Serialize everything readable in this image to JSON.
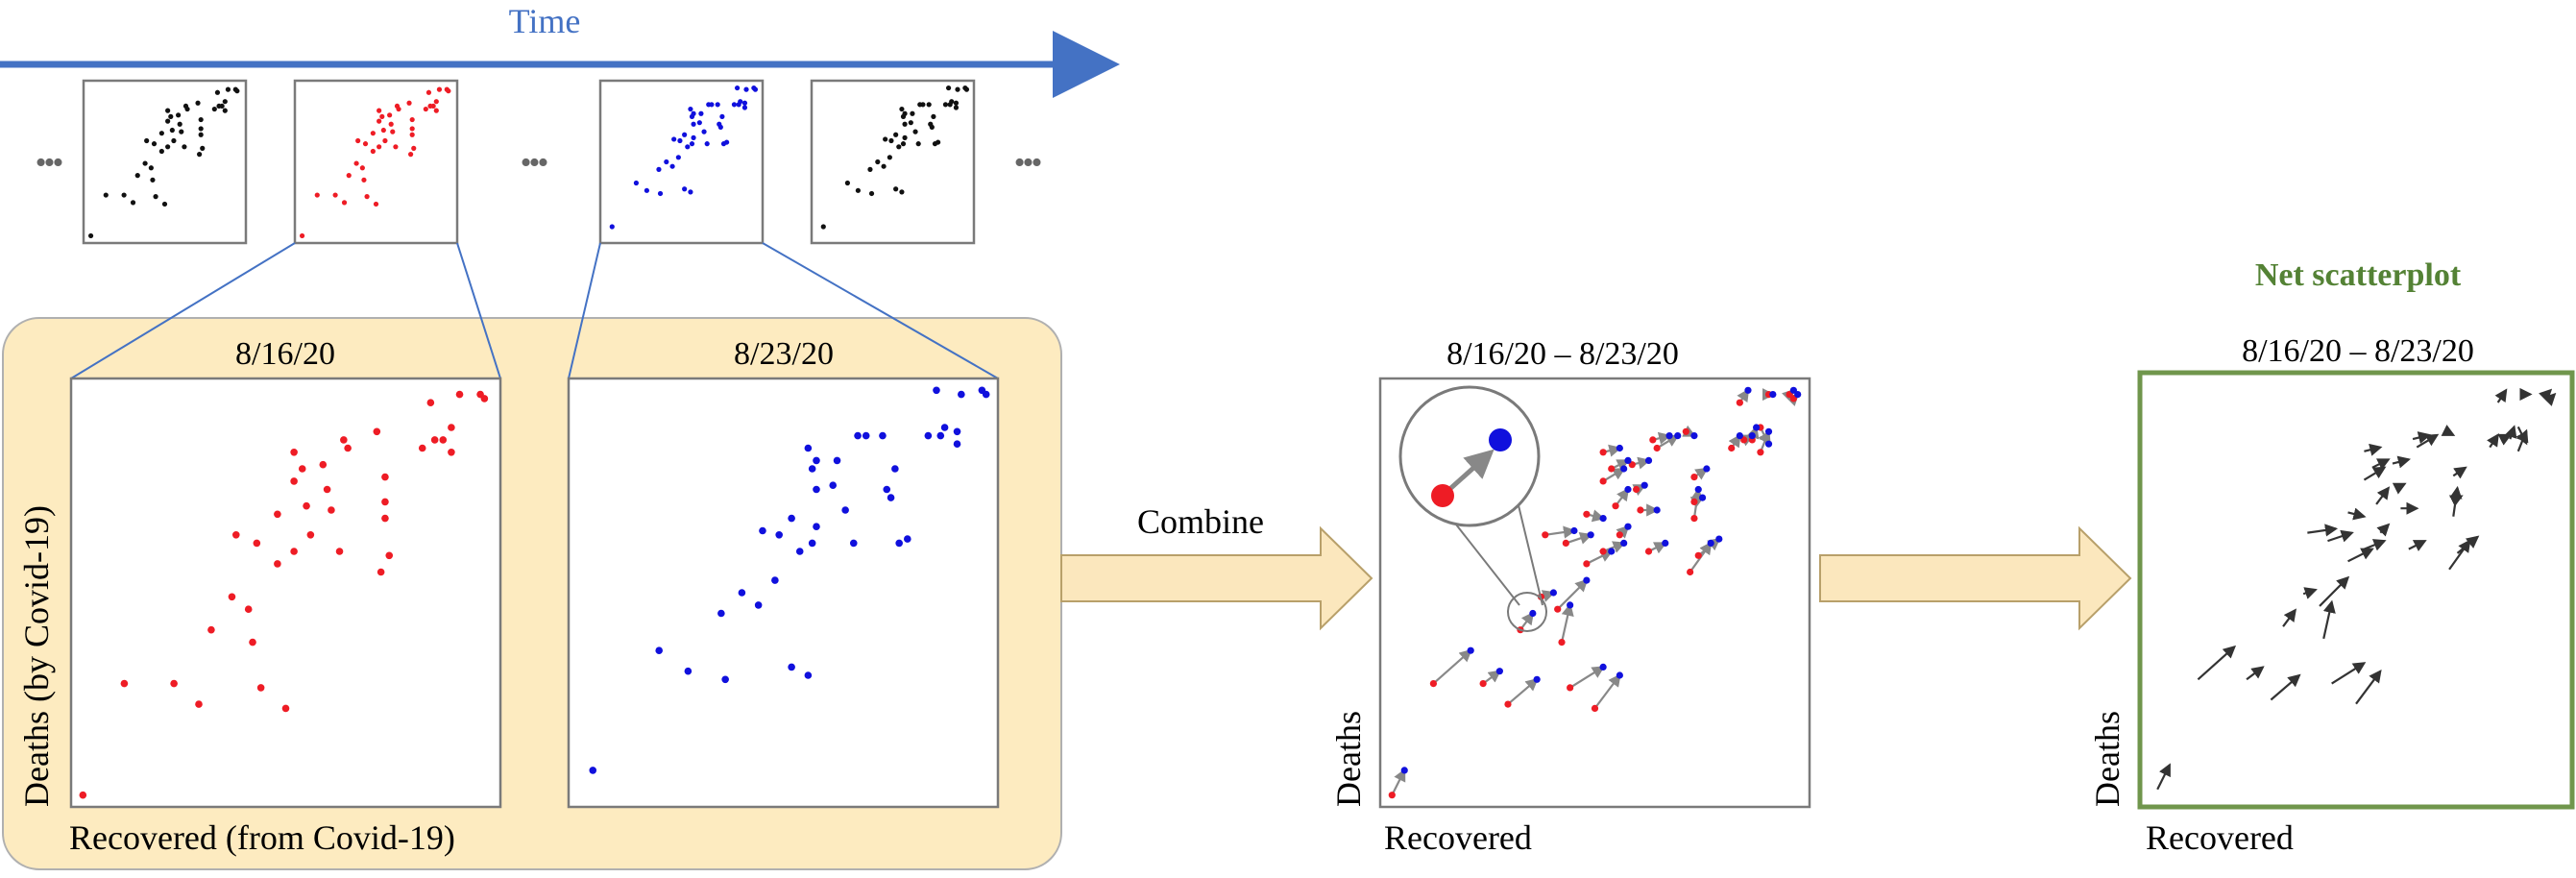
{
  "timeline": {
    "label": "Time",
    "color": "#4472c4"
  },
  "colors": {
    "week1": "#ee1c25",
    "week2": "#1010dd",
    "neutral": "#111111",
    "arrow": "#888888",
    "panel_fill": "#fdebc0",
    "panel_stroke": "#b0b0b0",
    "frame": "#7a7a7a",
    "net_frame": "#70964c",
    "net_title": "#548235",
    "zoom_line": "#4472c4",
    "big_arrow_fill": "#fbe7bd",
    "big_arrow_stroke": "#b8a06a"
  },
  "ellipsis": "•••",
  "panels": {
    "week1": {
      "date": "8/16/20"
    },
    "week2": {
      "date": "8/23/20"
    },
    "ylabel": "Deaths (by Covid-19)",
    "xlabel": "Recovered (from Covid-19)"
  },
  "steps": {
    "combine": "Combine"
  },
  "combined": {
    "date": "8/16/20 – 8/23/20",
    "ylabel": "Deaths",
    "xlabel": "Recovered"
  },
  "net": {
    "title": "Net scatterplot",
    "date": "8/16/20 – 8/23/20",
    "ylabel": "Deaths",
    "xlabel": "Recovered"
  },
  "chart_data": {
    "type": "scatter",
    "title": "Net scatterplot",
    "xlabel": "Recovered (from Covid-19)",
    "ylabel": "Deaths (by Covid-19)",
    "xlim": [
      0,
      1
    ],
    "ylim": [
      0,
      1
    ],
    "units": "normalized",
    "series": [
      {
        "name": "8/16/20",
        "points": [
          [
            0.01,
            0.01
          ],
          [
            0.11,
            0.28
          ],
          [
            0.23,
            0.28
          ],
          [
            0.29,
            0.23
          ],
          [
            0.44,
            0.27
          ],
          [
            0.5,
            0.22
          ],
          [
            0.42,
            0.38
          ],
          [
            0.41,
            0.46
          ],
          [
            0.32,
            0.41
          ],
          [
            0.37,
            0.49
          ],
          [
            0.38,
            0.64
          ],
          [
            0.43,
            0.62
          ],
          [
            0.48,
            0.57
          ],
          [
            0.52,
            0.6
          ],
          [
            0.56,
            0.64
          ],
          [
            0.48,
            0.69
          ],
          [
            0.55,
            0.71
          ],
          [
            0.61,
            0.7
          ],
          [
            0.63,
            0.6
          ],
          [
            0.73,
            0.55
          ],
          [
            0.75,
            0.59
          ],
          [
            0.74,
            0.68
          ],
          [
            0.74,
            0.72
          ],
          [
            0.6,
            0.75
          ],
          [
            0.52,
            0.77
          ],
          [
            0.54,
            0.8
          ],
          [
            0.52,
            0.84
          ],
          [
            0.59,
            0.81
          ],
          [
            0.74,
            0.78
          ],
          [
            0.65,
            0.85
          ],
          [
            0.64,
            0.87
          ],
          [
            0.72,
            0.89
          ],
          [
            0.83,
            0.85
          ],
          [
            0.86,
            0.87
          ],
          [
            0.88,
            0.87
          ],
          [
            0.9,
            0.9
          ],
          [
            0.9,
            0.84
          ],
          [
            0.85,
            0.96
          ],
          [
            0.92,
            0.98
          ],
          [
            0.97,
            0.98
          ],
          [
            0.98,
            0.97
          ]
        ]
      },
      {
        "name": "8/23/20",
        "points": [
          [
            0.04,
            0.07
          ],
          [
            0.2,
            0.36
          ],
          [
            0.27,
            0.31
          ],
          [
            0.36,
            0.29
          ],
          [
            0.52,
            0.32
          ],
          [
            0.56,
            0.3
          ],
          [
            0.44,
            0.47
          ],
          [
            0.48,
            0.53
          ],
          [
            0.35,
            0.45
          ],
          [
            0.4,
            0.5
          ],
          [
            0.45,
            0.65
          ],
          [
            0.49,
            0.64
          ],
          [
            0.54,
            0.6
          ],
          [
            0.57,
            0.62
          ],
          [
            0.58,
            0.66
          ],
          [
            0.52,
            0.68
          ],
          [
            0.58,
            0.75
          ],
          [
            0.65,
            0.7
          ],
          [
            0.67,
            0.62
          ],
          [
            0.78,
            0.62
          ],
          [
            0.8,
            0.63
          ],
          [
            0.75,
            0.75
          ],
          [
            0.76,
            0.73
          ],
          [
            0.62,
            0.76
          ],
          [
            0.57,
            0.8
          ],
          [
            0.58,
            0.82
          ],
          [
            0.56,
            0.85
          ],
          [
            0.63,
            0.82
          ],
          [
            0.77,
            0.8
          ],
          [
            0.7,
            0.88
          ],
          [
            0.68,
            0.88
          ],
          [
            0.74,
            0.88
          ],
          [
            0.85,
            0.88
          ],
          [
            0.88,
            0.88
          ],
          [
            0.89,
            0.9
          ],
          [
            0.92,
            0.86
          ],
          [
            0.92,
            0.89
          ],
          [
            0.87,
            0.99
          ],
          [
            0.93,
            0.98
          ],
          [
            0.98,
            0.99
          ],
          [
            0.99,
            0.98
          ]
        ]
      }
    ]
  }
}
